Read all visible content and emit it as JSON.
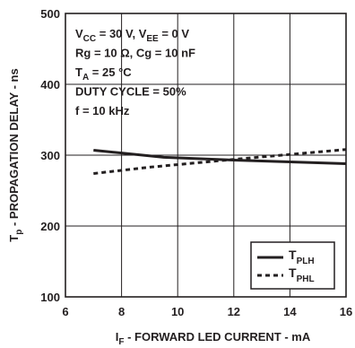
{
  "chart_data": {
    "type": "line",
    "title": "",
    "xlabel": {
      "main": "I",
      "sub": "F",
      "rest": " -  FORWARD LED CURRENT  -  mA"
    },
    "ylabel": {
      "main": "T",
      "sub": "p",
      "rest": " -  PROPAGATION DELAY  -  ns"
    },
    "xlim": [
      6,
      16
    ],
    "ylim": [
      100,
      500
    ],
    "xticks": [
      "6",
      "8",
      "10",
      "12",
      "14",
      "16"
    ],
    "yticks": [
      "100",
      "200",
      "300",
      "400",
      "500"
    ],
    "grid": true,
    "legend_position": "bottom-right",
    "conditions": [
      {
        "parts": [
          [
            "V",
            ""
          ],
          [
            "CC",
            "sub"
          ],
          [
            " = 30 V, V",
            ""
          ],
          [
            "EE",
            "sub"
          ],
          [
            " = 0 V",
            ""
          ]
        ]
      },
      {
        "parts": [
          [
            "Rg = 10 Ω, Cg = 10 nF",
            ""
          ]
        ]
      },
      {
        "parts": [
          [
            "T",
            ""
          ],
          [
            "A",
            "sub"
          ],
          [
            " = 25 °C",
            ""
          ]
        ]
      },
      {
        "parts": [
          [
            "DUTY CYCLE = 50%",
            ""
          ]
        ]
      },
      {
        "parts": [
          [
            "f = 10 kHz",
            ""
          ]
        ]
      }
    ],
    "series": [
      {
        "name": {
          "main": "T",
          "sub": "PLH"
        },
        "style": "solid",
        "x": [
          7,
          9.5,
          12,
          16
        ],
        "y": [
          307,
          297,
          293,
          288
        ]
      },
      {
        "name": {
          "main": "T",
          "sub": "PHL"
        },
        "style": "dashed",
        "x": [
          7,
          9,
          12,
          16
        ],
        "y": [
          274,
          283,
          294,
          308
        ]
      }
    ],
    "colors": {
      "ink": "#231f20"
    }
  }
}
